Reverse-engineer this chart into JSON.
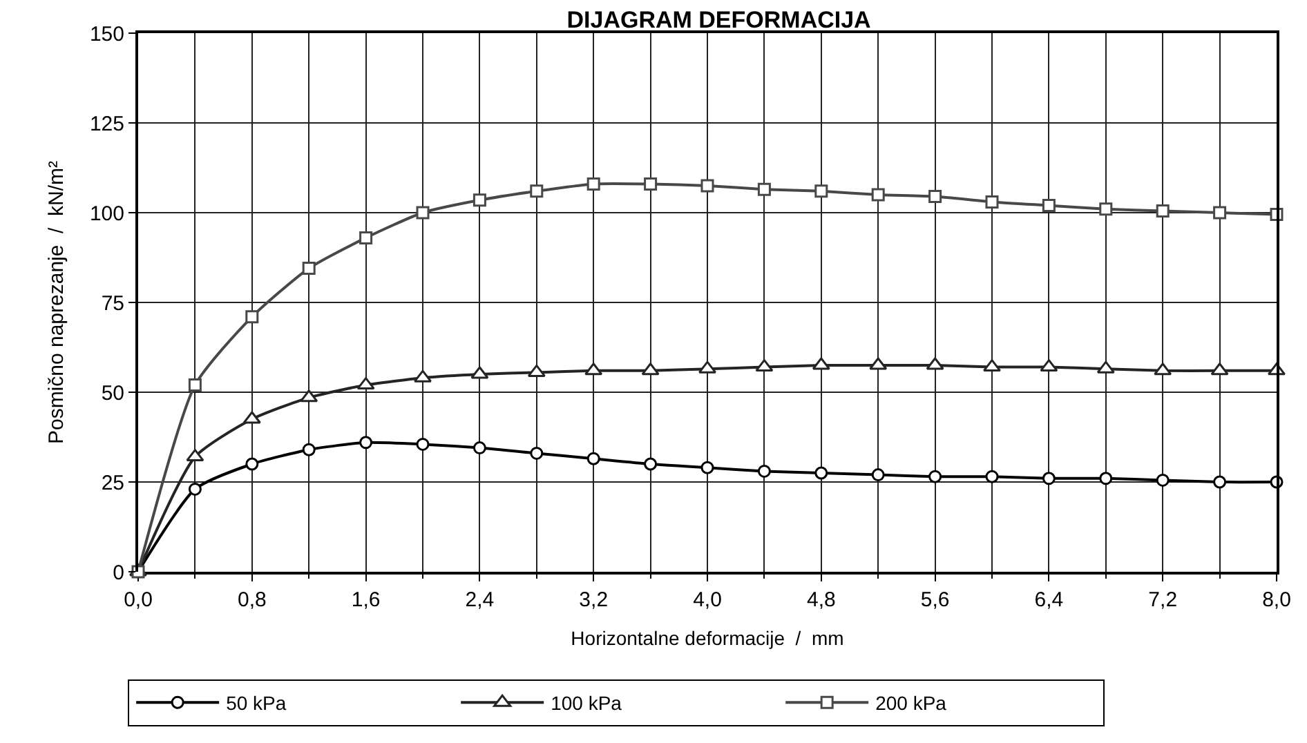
{
  "chart_data": {
    "type": "line",
    "title": "DIJAGRAM DEFORMACIJA",
    "xlabel": "Horizontalne deformacije  /  mm",
    "ylabel": "Posmično naprezanje  /  kN/m²",
    "x": [
      0,
      0.4,
      0.8,
      1.2,
      1.6,
      2.0,
      2.4,
      2.8,
      3.2,
      3.6,
      4.0,
      4.4,
      4.8,
      5.2,
      5.6,
      6.0,
      6.4,
      6.8,
      7.2,
      7.6,
      8.0
    ],
    "series": [
      {
        "name": "50 kPa",
        "color": "#000000",
        "marker": "circle",
        "values": [
          0,
          23,
          30,
          34,
          36,
          35.5,
          34.5,
          33,
          31.5,
          30,
          29,
          28,
          27.5,
          27,
          26.5,
          26.5,
          26,
          26,
          25.5,
          25,
          25
        ]
      },
      {
        "name": "100 kPa",
        "color": "#242424",
        "marker": "triangle",
        "values": [
          0,
          32,
          42.5,
          48.5,
          52,
          54,
          55,
          55.5,
          56,
          56,
          56.5,
          57,
          57.5,
          57.5,
          57.5,
          57,
          57,
          56.5,
          56,
          56,
          56
        ]
      },
      {
        "name": "200 kPa",
        "color": "#484848",
        "marker": "square",
        "values": [
          0,
          52,
          71,
          84.5,
          93,
          100,
          103.5,
          106,
          108,
          108,
          107.5,
          106.5,
          106,
          105,
          104.5,
          103,
          102,
          101,
          100.5,
          100,
          99.5
        ]
      }
    ],
    "xlim": [
      0,
      8
    ],
    "xticks": [
      {
        "value": 0,
        "label": "0,0"
      },
      {
        "value": 0.8,
        "label": "0,8"
      },
      {
        "value": 1.6,
        "label": "1,6"
      },
      {
        "value": 2.4,
        "label": "2,4"
      },
      {
        "value": 3.2,
        "label": "3,2"
      },
      {
        "value": 4.0,
        "label": "4,0"
      },
      {
        "value": 4.8,
        "label": "4,8"
      },
      {
        "value": 5.6,
        "label": "5,6"
      },
      {
        "value": 6.4,
        "label": "6,4"
      },
      {
        "value": 7.2,
        "label": "7,2"
      },
      {
        "value": 8.0,
        "label": "8,0"
      }
    ],
    "ylim": [
      0,
      150
    ],
    "yticks": [
      0,
      25,
      50,
      75,
      100,
      125,
      150
    ],
    "grid": true,
    "legend": "bottom",
    "line_style": "solid"
  }
}
